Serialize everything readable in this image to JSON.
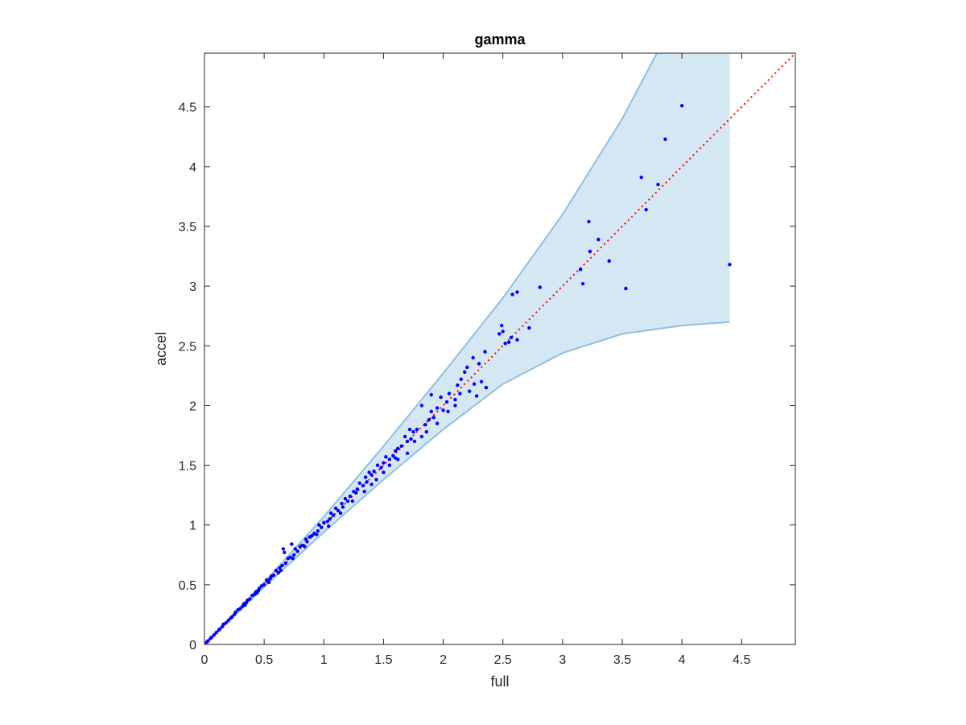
{
  "chart_data": {
    "type": "scatter",
    "title": "gamma",
    "xlabel": "full",
    "ylabel": "accel",
    "xlim": [
      0,
      4.95
    ],
    "ylim": [
      0,
      4.95
    ],
    "x_ticks": [
      "0",
      "0.5",
      "1",
      "1.5",
      "2",
      "2.5",
      "3",
      "3.5",
      "4",
      "4.5"
    ],
    "y_ticks": [
      "0",
      "0.5",
      "1",
      "1.5",
      "2",
      "2.5",
      "3",
      "3.5",
      "4",
      "4.5"
    ],
    "grid": false,
    "colors": {
      "points": "#0000ff",
      "reference_line": "#ff0000",
      "band_fill": "#d6e7f4",
      "band_edge": "#8dc0e0",
      "axes": "#262626"
    },
    "reference_line": {
      "style": "dotted",
      "from": [
        0,
        0
      ],
      "to": [
        4.95,
        4.95
      ]
    },
    "band": {
      "x_end": 4.4,
      "upper": [
        [
          0,
          0
        ],
        [
          0.5,
          0.52
        ],
        [
          1,
          1.07
        ],
        [
          1.5,
          1.66
        ],
        [
          2,
          2.27
        ],
        [
          2.5,
          2.9
        ],
        [
          3,
          3.6
        ],
        [
          3.5,
          4.4
        ],
        [
          3.79,
          4.95
        ]
      ],
      "lower": [
        [
          0,
          0
        ],
        [
          0.5,
          0.48
        ],
        [
          1,
          0.94
        ],
        [
          1.5,
          1.38
        ],
        [
          2,
          1.8
        ],
        [
          2.5,
          2.18
        ],
        [
          3,
          2.44
        ],
        [
          3.5,
          2.6
        ],
        [
          4,
          2.67
        ],
        [
          4.4,
          2.7
        ]
      ]
    },
    "points": [
      [
        4.0,
        4.51
      ],
      [
        3.86,
        4.23
      ],
      [
        3.66,
        3.91
      ],
      [
        3.8,
        3.85
      ],
      [
        3.7,
        3.64
      ],
      [
        3.22,
        3.54
      ],
      [
        3.3,
        3.39
      ],
      [
        3.23,
        3.29
      ],
      [
        3.39,
        3.21
      ],
      [
        3.15,
        3.14
      ],
      [
        3.17,
        3.02
      ],
      [
        3.53,
        2.98
      ],
      [
        4.4,
        3.18
      ],
      [
        2.81,
        2.99
      ],
      [
        2.62,
        2.95
      ],
      [
        2.58,
        2.93
      ],
      [
        2.72,
        2.65
      ],
      [
        2.49,
        2.67
      ],
      [
        2.5,
        2.62
      ],
      [
        2.47,
        2.6
      ],
      [
        2.57,
        2.57
      ],
      [
        2.55,
        2.53
      ],
      [
        2.62,
        2.55
      ],
      [
        2.52,
        2.52
      ],
      [
        2.35,
        2.45
      ],
      [
        2.25,
        2.4
      ],
      [
        2.3,
        2.35
      ],
      [
        2.2,
        2.32
      ],
      [
        2.18,
        2.28
      ],
      [
        2.32,
        2.2
      ],
      [
        2.26,
        2.18
      ],
      [
        2.36,
        2.15
      ],
      [
        2.15,
        2.22
      ],
      [
        2.12,
        2.17
      ],
      [
        2.14,
        2.1
      ],
      [
        2.1,
        2.05
      ],
      [
        2.05,
        2.1
      ],
      [
        1.98,
        2.07
      ],
      [
        2.03,
        2.03
      ],
      [
        2.0,
        1.96
      ],
      [
        1.95,
        1.98
      ],
      [
        1.9,
        1.95
      ],
      [
        1.92,
        1.9
      ],
      [
        1.88,
        1.88
      ],
      [
        1.82,
        2.0
      ],
      [
        1.9,
        2.09
      ],
      [
        1.85,
        1.84
      ],
      [
        1.78,
        1.8
      ],
      [
        1.75,
        1.78
      ],
      [
        1.73,
        1.72
      ],
      [
        1.72,
        1.8
      ],
      [
        1.7,
        1.7
      ],
      [
        1.68,
        1.74
      ],
      [
        1.65,
        1.66
      ],
      [
        1.62,
        1.64
      ],
      [
        1.6,
        1.62
      ],
      [
        1.6,
        1.56
      ],
      [
        1.58,
        1.58
      ],
      [
        1.55,
        1.55
      ],
      [
        1.52,
        1.57
      ],
      [
        1.55,
        1.5
      ],
      [
        1.5,
        1.52
      ],
      [
        1.48,
        1.48
      ],
      [
        1.45,
        1.5
      ],
      [
        1.42,
        1.45
      ],
      [
        1.4,
        1.42
      ],
      [
        1.38,
        1.44
      ],
      [
        1.36,
        1.36
      ],
      [
        1.35,
        1.4
      ],
      [
        1.33,
        1.33
      ],
      [
        1.3,
        1.35
      ],
      [
        1.28,
        1.3
      ],
      [
        1.27,
        1.27
      ],
      [
        1.25,
        1.28
      ],
      [
        1.22,
        1.24
      ],
      [
        1.2,
        1.2
      ],
      [
        1.18,
        1.22
      ],
      [
        1.16,
        1.15
      ],
      [
        1.15,
        1.18
      ],
      [
        1.12,
        1.12
      ],
      [
        1.1,
        1.14
      ],
      [
        1.08,
        1.08
      ],
      [
        1.06,
        1.1
      ],
      [
        1.05,
        1.05
      ],
      [
        1.03,
        1.03
      ],
      [
        1.0,
        1.02
      ],
      [
        0.98,
        0.98
      ],
      [
        0.96,
        1.0
      ],
      [
        0.95,
        0.95
      ],
      [
        0.92,
        0.93
      ],
      [
        0.9,
        0.91
      ],
      [
        0.88,
        0.9
      ],
      [
        0.86,
        0.86
      ],
      [
        0.85,
        0.88
      ],
      [
        0.82,
        0.83
      ],
      [
        0.8,
        0.82
      ],
      [
        0.78,
        0.78
      ],
      [
        0.76,
        0.8
      ],
      [
        0.75,
        0.75
      ],
      [
        0.72,
        0.73
      ],
      [
        0.7,
        0.72
      ],
      [
        0.68,
        0.68
      ],
      [
        0.66,
        0.8
      ],
      [
        0.67,
        0.77
      ],
      [
        0.73,
        0.84
      ],
      [
        0.65,
        0.66
      ],
      [
        0.63,
        0.64
      ],
      [
        0.62,
        0.6
      ],
      [
        0.6,
        0.62
      ],
      [
        0.58,
        0.58
      ],
      [
        0.56,
        0.57
      ],
      [
        0.55,
        0.55
      ],
      [
        0.53,
        0.53
      ],
      [
        0.52,
        0.54
      ],
      [
        0.5,
        0.5
      ],
      [
        0.48,
        0.49
      ],
      [
        0.46,
        0.47
      ],
      [
        0.45,
        0.45
      ],
      [
        0.43,
        0.44
      ],
      [
        0.42,
        0.42
      ],
      [
        0.4,
        0.41
      ],
      [
        0.38,
        0.38
      ],
      [
        0.36,
        0.37
      ],
      [
        0.35,
        0.35
      ],
      [
        0.33,
        0.34
      ],
      [
        0.32,
        0.32
      ],
      [
        0.3,
        0.3
      ],
      [
        0.28,
        0.29
      ],
      [
        0.26,
        0.27
      ],
      [
        0.25,
        0.25
      ],
      [
        0.23,
        0.23
      ],
      [
        0.22,
        0.22
      ],
      [
        0.2,
        0.2
      ],
      [
        0.18,
        0.18
      ],
      [
        0.16,
        0.17
      ],
      [
        0.15,
        0.15
      ],
      [
        0.13,
        0.13
      ],
      [
        0.12,
        0.12
      ],
      [
        0.1,
        0.1
      ],
      [
        0.08,
        0.08
      ],
      [
        0.06,
        0.06
      ],
      [
        0.05,
        0.05
      ],
      [
        0.03,
        0.03
      ],
      [
        0.02,
        0.02
      ],
      [
        1.44,
        1.38
      ],
      [
        1.34,
        1.28
      ],
      [
        1.24,
        1.2
      ],
      [
        1.14,
        1.1
      ],
      [
        1.04,
        0.99
      ],
      [
        1.62,
        1.55
      ],
      [
        1.7,
        1.6
      ],
      [
        1.76,
        1.7
      ],
      [
        1.82,
        1.74
      ],
      [
        1.86,
        1.78
      ],
      [
        1.95,
        1.85
      ],
      [
        2.04,
        1.95
      ],
      [
        2.1,
        2.0
      ],
      [
        2.22,
        2.12
      ],
      [
        2.28,
        2.08
      ],
      [
        1.5,
        1.44
      ],
      [
        1.4,
        1.34
      ],
      [
        0.94,
        0.92
      ],
      [
        0.84,
        0.82
      ],
      [
        0.74,
        0.72
      ],
      [
        0.64,
        0.62
      ],
      [
        0.54,
        0.52
      ],
      [
        0.44,
        0.43
      ],
      [
        0.34,
        0.33
      ]
    ]
  }
}
